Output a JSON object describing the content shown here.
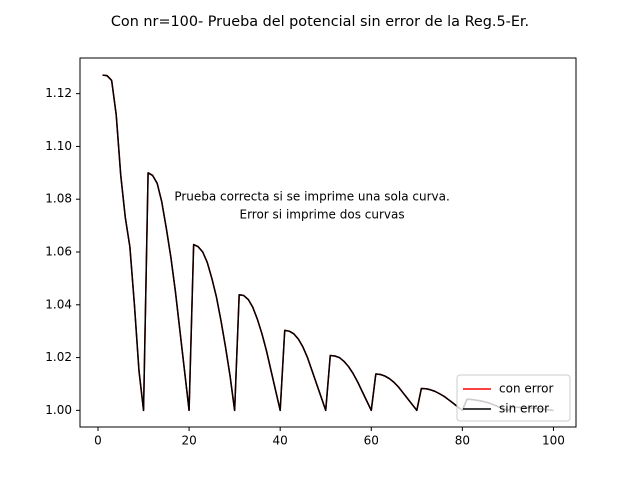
{
  "chart_data": {
    "type": "line",
    "title": "Con nr=100- Prueba del potencial sin error  de la Reg.5-Er.",
    "xlabel": "",
    "ylabel": "",
    "xlim": [
      -3.95,
      104.95
    ],
    "ylim": [
      0.9937,
      1.1335
    ],
    "xticks": [
      0,
      20,
      40,
      60,
      80,
      100
    ],
    "yticks": [
      1.0,
      1.02,
      1.04,
      1.06,
      1.08,
      1.1,
      1.12
    ],
    "xtick_labels": [
      "0",
      "20",
      "40",
      "60",
      "80",
      "100"
    ],
    "ytick_labels": [
      "1.00",
      "1.02",
      "1.04",
      "1.06",
      "1.08",
      "1.10",
      "1.12"
    ],
    "legend_position": "lower-right",
    "annotation": {
      "lines": [
        "Prueba correcta si se imprime una sola curva.",
        "Error si imprime dos curvas"
      ],
      "x": 47,
      "y": 1.0775
    },
    "series": [
      {
        "name": "con error",
        "color": "#ff0000",
        "x": [
          1,
          2,
          3,
          4,
          5,
          6,
          7,
          8,
          9,
          10,
          11,
          12,
          13,
          14,
          15,
          16,
          17,
          18,
          19,
          20,
          21,
          22,
          23,
          24,
          25,
          26,
          27,
          28,
          29,
          30,
          31,
          32,
          33,
          34,
          35,
          36,
          37,
          38,
          39,
          40,
          41,
          42,
          43,
          44,
          45,
          46,
          47,
          48,
          49,
          50,
          51,
          52,
          53,
          54,
          55,
          56,
          57,
          58,
          59,
          60,
          61,
          62,
          63,
          64,
          65,
          66,
          67,
          68,
          69,
          70,
          71,
          72,
          73,
          74,
          75,
          76,
          77,
          78,
          79,
          80,
          81,
          82,
          83,
          84,
          85,
          86,
          87,
          88,
          89,
          90,
          91,
          92,
          93,
          94,
          95,
          96,
          97,
          98,
          99,
          100
        ],
        "values": [
          1.127,
          1.1268,
          1.125,
          1.112,
          1.089,
          1.073,
          1.062,
          1.04,
          1.015,
          1.0,
          1.09,
          1.089,
          1.086,
          1.079,
          1.069,
          1.058,
          1.045,
          1.03,
          1.015,
          1.0,
          1.0628,
          1.062,
          1.06,
          1.056,
          1.05,
          1.043,
          1.034,
          1.024,
          1.013,
          1.0,
          1.0438,
          1.0435,
          1.042,
          1.039,
          1.0345,
          1.029,
          1.0225,
          1.015,
          1.0075,
          1.0,
          1.0303,
          1.03,
          1.029,
          1.027,
          1.024,
          1.02,
          1.015,
          1.01,
          1.005,
          1.0,
          1.0208,
          1.0206,
          1.02,
          1.0186,
          1.0166,
          1.014,
          1.0108,
          1.0072,
          1.0036,
          1.0,
          1.0138,
          1.0136,
          1.013,
          1.012,
          1.0106,
          1.0088,
          1.0066,
          1.0044,
          1.0022,
          1.0,
          1.0083,
          1.0082,
          1.0078,
          1.0072,
          1.0063,
          1.0053,
          1.004,
          1.0027,
          1.0013,
          1.0,
          1.0042,
          1.0041,
          1.0039,
          1.0036,
          1.0032,
          1.0027,
          1.002,
          1.0013,
          1.0007,
          1.0,
          1.0012,
          1.0012,
          1.0011,
          1.001,
          1.0009,
          1.0008,
          1.0006,
          1.0004,
          1.0002,
          1.0
        ]
      },
      {
        "name": "sin error",
        "color": "#000000",
        "x": [
          1,
          2,
          3,
          4,
          5,
          6,
          7,
          8,
          9,
          10,
          11,
          12,
          13,
          14,
          15,
          16,
          17,
          18,
          19,
          20,
          21,
          22,
          23,
          24,
          25,
          26,
          27,
          28,
          29,
          30,
          31,
          32,
          33,
          34,
          35,
          36,
          37,
          38,
          39,
          40,
          41,
          42,
          43,
          44,
          45,
          46,
          47,
          48,
          49,
          50,
          51,
          52,
          53,
          54,
          55,
          56,
          57,
          58,
          59,
          60,
          61,
          62,
          63,
          64,
          65,
          66,
          67,
          68,
          69,
          70,
          71,
          72,
          73,
          74,
          75,
          76,
          77,
          78,
          79,
          80,
          81,
          82,
          83,
          84,
          85,
          86,
          87,
          88,
          89,
          90,
          91,
          92,
          93,
          94,
          95,
          96,
          97,
          98,
          99,
          100
        ],
        "values": [
          1.127,
          1.1268,
          1.125,
          1.112,
          1.089,
          1.073,
          1.062,
          1.04,
          1.015,
          1.0,
          1.09,
          1.089,
          1.086,
          1.079,
          1.069,
          1.058,
          1.045,
          1.03,
          1.015,
          1.0,
          1.0628,
          1.062,
          1.06,
          1.056,
          1.05,
          1.043,
          1.034,
          1.024,
          1.013,
          1.0,
          1.0438,
          1.0435,
          1.042,
          1.039,
          1.0345,
          1.029,
          1.0225,
          1.015,
          1.0075,
          1.0,
          1.0303,
          1.03,
          1.029,
          1.027,
          1.024,
          1.02,
          1.015,
          1.01,
          1.005,
          1.0,
          1.0208,
          1.0206,
          1.02,
          1.0186,
          1.0166,
          1.014,
          1.0108,
          1.0072,
          1.0036,
          1.0,
          1.0138,
          1.0136,
          1.013,
          1.012,
          1.0106,
          1.0088,
          1.0066,
          1.0044,
          1.0022,
          1.0,
          1.0083,
          1.0082,
          1.0078,
          1.0072,
          1.0063,
          1.0053,
          1.004,
          1.0027,
          1.0013,
          1.0,
          1.0042,
          1.0041,
          1.0039,
          1.0036,
          1.0032,
          1.0027,
          1.002,
          1.0013,
          1.0007,
          1.0,
          1.0012,
          1.0012,
          1.0011,
          1.001,
          1.0009,
          1.0008,
          1.0006,
          1.0004,
          1.0002,
          1.0
        ]
      }
    ]
  }
}
